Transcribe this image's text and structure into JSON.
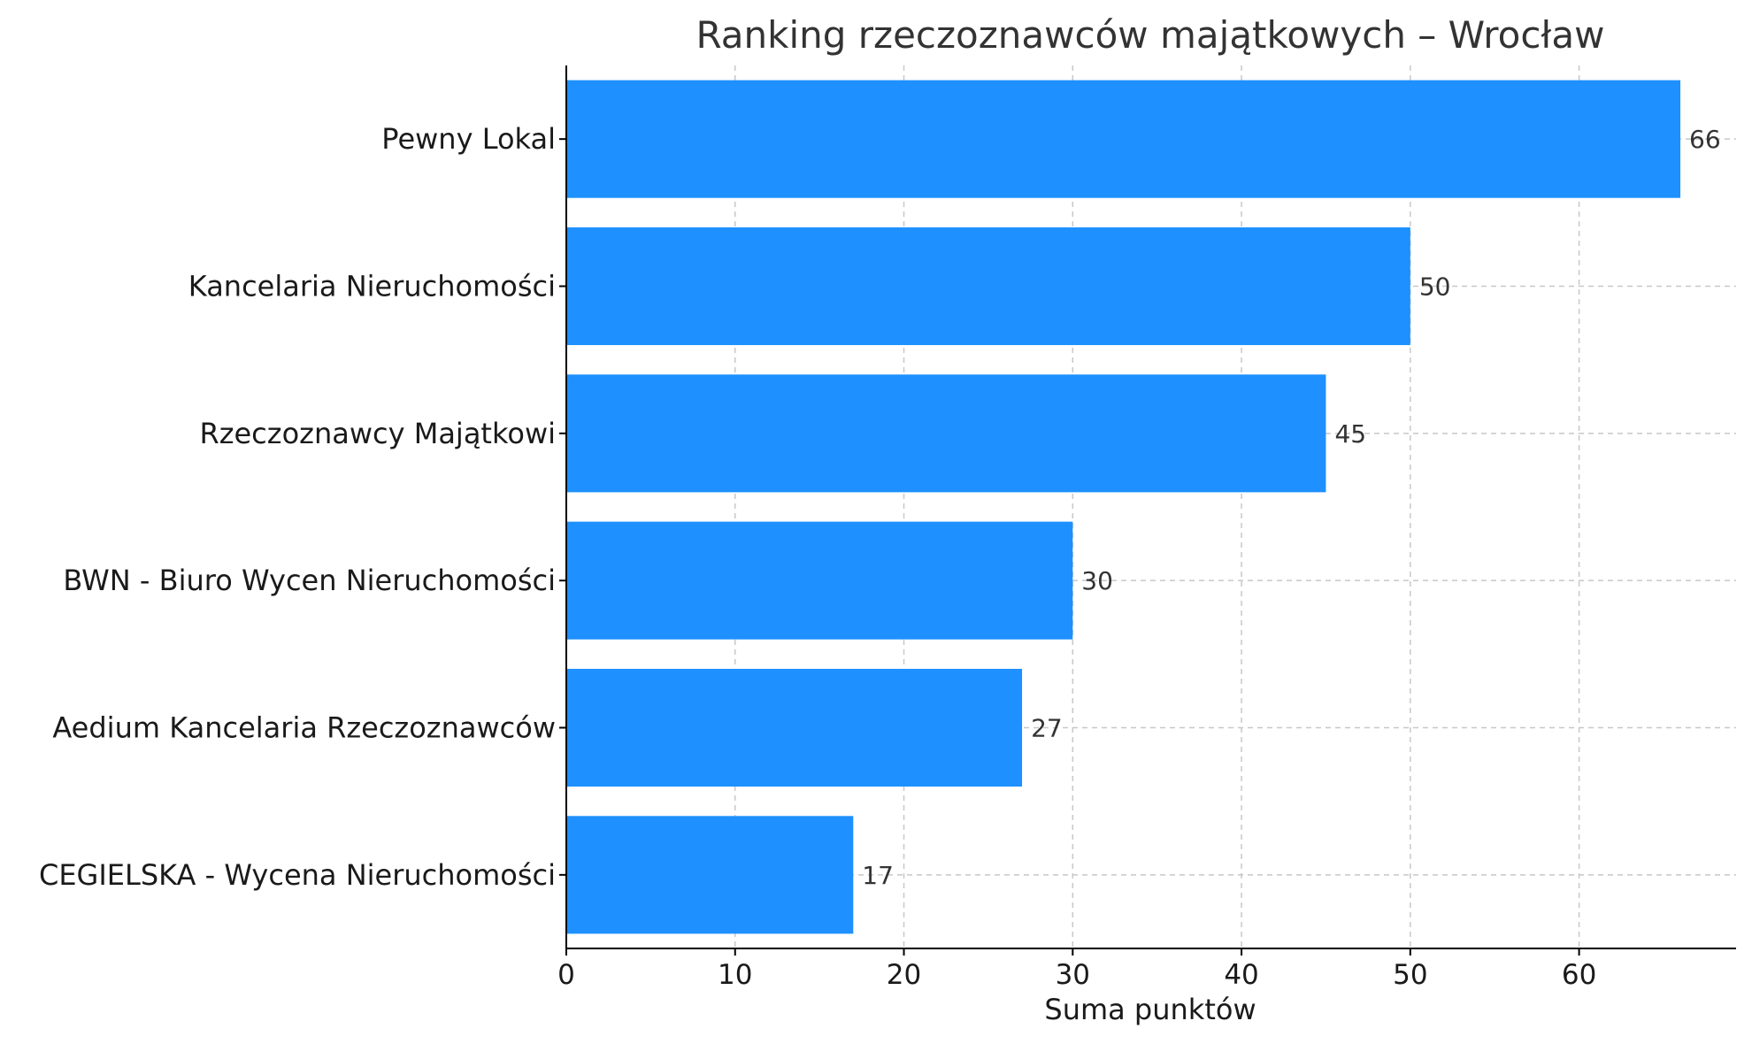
{
  "chart_data": {
    "type": "bar",
    "orientation": "horizontal",
    "title": "Ranking rzeczoznawców majątkowych – Wrocław",
    "xlabel": "Suma punktów",
    "ylabel": "",
    "categories": [
      "Pewny Lokal",
      "Kancelaria Nieruchomości",
      "Rzeczoznawcy Majątkowi",
      "BWN - Biuro Wycen Nieruchomości",
      "Aedium Kancelaria Rzeczoznawców",
      "CEGIELSKA - Wycena Nieruchomości"
    ],
    "values": [
      66,
      50,
      45,
      30,
      27,
      17
    ],
    "xlim": [
      0,
      69.3
    ],
    "xticks": [
      0,
      10,
      20,
      30,
      40,
      50,
      60
    ],
    "grid": true,
    "data_labels": true,
    "bar_color": "#1e90ff",
    "grid_color": "#c8c8c8",
    "axis_color": "#000000"
  }
}
